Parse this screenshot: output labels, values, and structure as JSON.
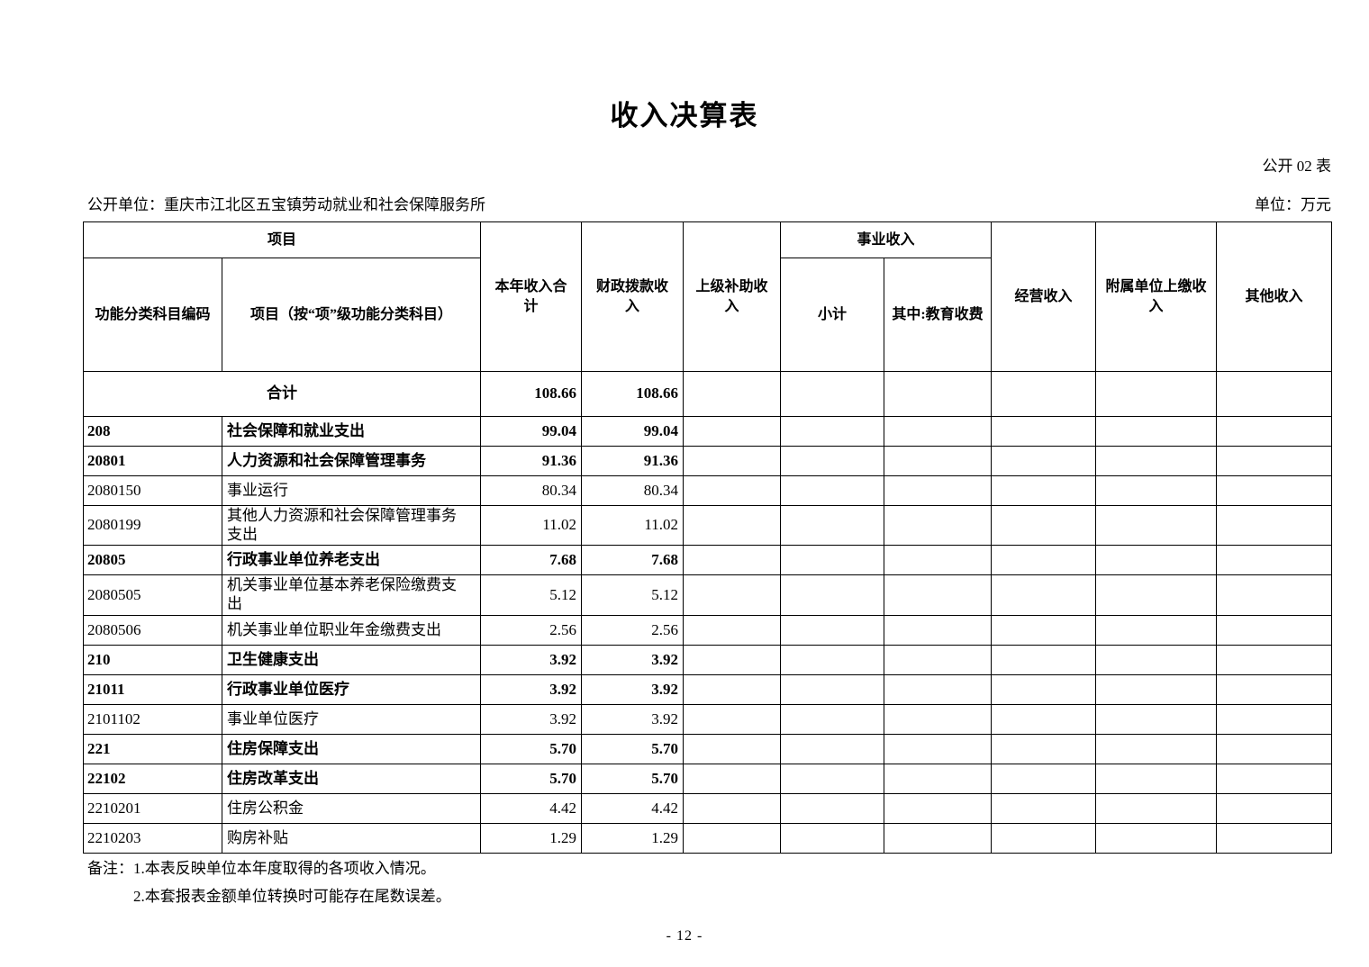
{
  "page": {
    "title": "收入决算表",
    "table_code": "公开 02 表",
    "publish_unit": "公开单位：重庆市江北区五宝镇劳动就业和社会保障服务所",
    "amount_unit": "单位：万元",
    "page_number": "- 12 -"
  },
  "table": {
    "header": {
      "project_group": "项目",
      "function_code": "功能分类科目编码",
      "item_by_level": "项目（按“项”级功能分类科目）",
      "total_income": "本年收入合计",
      "fiscal_appropriation_income": "财政拨款收入",
      "superior_subsidy_income": "上级补助收入",
      "business_income_group": "事业收入",
      "subtotal": "小计",
      "education_fee": "其中:教育收费",
      "operating_income": "经营收入",
      "affiliated_unit_income": "附属单位上缴收入",
      "other_income": "其他收入"
    },
    "rows": [
      {
        "code": "",
        "item": "合计",
        "total": "108.66",
        "fiscal": "108.66",
        "superior": "",
        "subtotal": "",
        "education": "",
        "operating": "",
        "affiliated": "",
        "other": "",
        "bold": true,
        "merged": true
      },
      {
        "code": "208",
        "item": "社会保障和就业支出",
        "total": "99.04",
        "fiscal": "99.04",
        "superior": "",
        "subtotal": "",
        "education": "",
        "operating": "",
        "affiliated": "",
        "other": "",
        "bold": true
      },
      {
        "code": "20801",
        "item": "人力资源和社会保障管理事务",
        "total": "91.36",
        "fiscal": "91.36",
        "superior": "",
        "subtotal": "",
        "education": "",
        "operating": "",
        "affiliated": "",
        "other": "",
        "bold": true
      },
      {
        "code": "2080150",
        "item": "事业运行",
        "total": "80.34",
        "fiscal": "80.34",
        "superior": "",
        "subtotal": "",
        "education": "",
        "operating": "",
        "affiliated": "",
        "other": ""
      },
      {
        "code": "2080199",
        "item": "其他人力资源和社会保障管理事务支出",
        "total": "11.02",
        "fiscal": "11.02",
        "superior": "",
        "subtotal": "",
        "education": "",
        "operating": "",
        "affiliated": "",
        "other": "",
        "tall": true
      },
      {
        "code": "20805",
        "item": "行政事业单位养老支出",
        "total": "7.68",
        "fiscal": "7.68",
        "superior": "",
        "subtotal": "",
        "education": "",
        "operating": "",
        "affiliated": "",
        "other": "",
        "bold": true
      },
      {
        "code": "2080505",
        "item": "机关事业单位基本养老保险缴费支出",
        "total": "5.12",
        "fiscal": "5.12",
        "superior": "",
        "subtotal": "",
        "education": "",
        "operating": "",
        "affiliated": "",
        "other": "",
        "tall": true
      },
      {
        "code": "2080506",
        "item": "机关事业单位职业年金缴费支出",
        "total": "2.56",
        "fiscal": "2.56",
        "superior": "",
        "subtotal": "",
        "education": "",
        "operating": "",
        "affiliated": "",
        "other": ""
      },
      {
        "code": "210",
        "item": "卫生健康支出",
        "total": "3.92",
        "fiscal": "3.92",
        "superior": "",
        "subtotal": "",
        "education": "",
        "operating": "",
        "affiliated": "",
        "other": "",
        "bold": true
      },
      {
        "code": "21011",
        "item": "行政事业单位医疗",
        "total": "3.92",
        "fiscal": "3.92",
        "superior": "",
        "subtotal": "",
        "education": "",
        "operating": "",
        "affiliated": "",
        "other": "",
        "bold": true
      },
      {
        "code": "2101102",
        "item": "事业单位医疗",
        "total": "3.92",
        "fiscal": "3.92",
        "superior": "",
        "subtotal": "",
        "education": "",
        "operating": "",
        "affiliated": "",
        "other": ""
      },
      {
        "code": "221",
        "item": "住房保障支出",
        "total": "5.70",
        "fiscal": "5.70",
        "superior": "",
        "subtotal": "",
        "education": "",
        "operating": "",
        "affiliated": "",
        "other": "",
        "bold": true
      },
      {
        "code": "22102",
        "item": "住房改革支出",
        "total": "5.70",
        "fiscal": "5.70",
        "superior": "",
        "subtotal": "",
        "education": "",
        "operating": "",
        "affiliated": "",
        "other": "",
        "bold": true
      },
      {
        "code": "2210201",
        "item": "住房公积金",
        "total": "4.42",
        "fiscal": "4.42",
        "superior": "",
        "subtotal": "",
        "education": "",
        "operating": "",
        "affiliated": "",
        "other": ""
      },
      {
        "code": "2210203",
        "item": "购房补贴",
        "total": "1.29",
        "fiscal": "1.29",
        "superior": "",
        "subtotal": "",
        "education": "",
        "operating": "",
        "affiliated": "",
        "other": ""
      }
    ]
  },
  "notes": [
    "备注：1.本表反映单位本年度取得的各项收入情况。",
    "2.本套报表金额单位转换时可能存在尾数误差。"
  ]
}
